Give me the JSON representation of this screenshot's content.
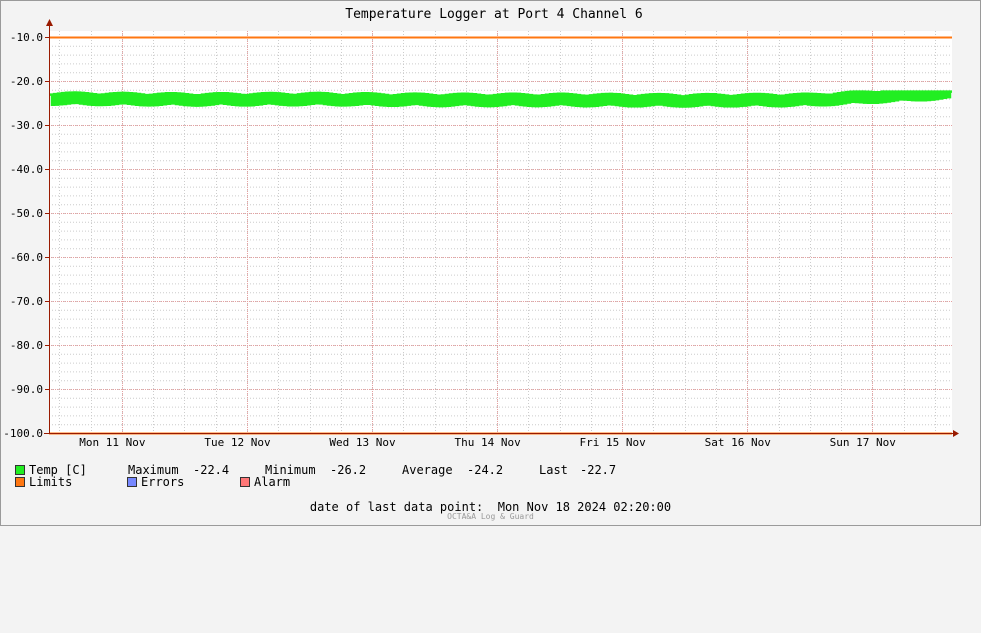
{
  "colors": {
    "temp": "#22ee22",
    "limits": "#ff7711",
    "errors": "#7788ff",
    "alarm": "#ff7777",
    "grid_major": "#e6a0a0",
    "grid_minor": "#cccccc",
    "axis": "#991a00",
    "plot_bg": "#ffffff"
  },
  "chart_data": {
    "type": "line",
    "title": "Temperature Logger at Port 4 Channel 6",
    "xlabel": "",
    "ylabel": "",
    "ylim": [
      -100,
      -10
    ],
    "y_ticks": [
      "-10.0",
      "-20.0",
      "-30.0",
      "-40.0",
      "-50.0",
      "-60.0",
      "-70.0",
      "-80.0",
      "-90.0",
      "-100.0"
    ],
    "x_range": [
      "2024-11-10 22:00",
      "2024-11-18 02:20"
    ],
    "x_ticks": [
      {
        "at": "2024-11-11 00:00",
        "label": "Mon 11 Nov"
      },
      {
        "at": "2024-11-12 00:00",
        "label": "Tue 12 Nov"
      },
      {
        "at": "2024-11-13 00:00",
        "label": "Wed 13 Nov"
      },
      {
        "at": "2024-11-14 00:00",
        "label": "Thu 14 Nov"
      },
      {
        "at": "2024-11-15 00:00",
        "label": "Fri 15 Nov"
      },
      {
        "at": "2024-11-16 00:00",
        "label": "Sat 16 Nov"
      },
      {
        "at": "2024-11-17 00:00",
        "label": "Sun 17 Nov"
      }
    ],
    "grid": true,
    "series": [
      {
        "name": "Temp [C]",
        "color": "#22ee22",
        "band": [
          -26.2,
          -22.4
        ],
        "values_by_day": [
          {
            "x": "2024-11-11 00:00",
            "y": -24.0
          },
          {
            "x": "2024-11-12 00:00",
            "y": -24.2
          },
          {
            "x": "2024-11-13 00:00",
            "y": -24.1
          },
          {
            "x": "2024-11-14 00:00",
            "y": -24.3
          },
          {
            "x": "2024-11-15 00:00",
            "y": -24.3
          },
          {
            "x": "2024-11-16 00:00",
            "y": -24.4
          },
          {
            "x": "2024-11-17 00:00",
            "y": -24.3
          },
          {
            "x": "2024-11-18 02:20",
            "y": -22.7
          }
        ]
      },
      {
        "name": "Limits",
        "color": "#ff7711",
        "lines": [
          -10.0,
          -100.0
        ]
      }
    ],
    "legend_placement": "bottom-left"
  },
  "legend": {
    "temp": "Temp [C]",
    "limits": "Limits",
    "errors": "Errors",
    "alarm": "Alarm",
    "maximum_label": "Maximum",
    "maximum_value": "-22.4",
    "minimum_label": "Minimum",
    "minimum_value": "-26.2",
    "average_label": "Average",
    "average_value": "-24.2",
    "last_label": "Last",
    "last_value": "-22.7"
  },
  "footer": {
    "date_text": "date of last data point:  Mon Nov 18 2024 02:20:00",
    "credit": "OCTA&A Log & Guard"
  }
}
